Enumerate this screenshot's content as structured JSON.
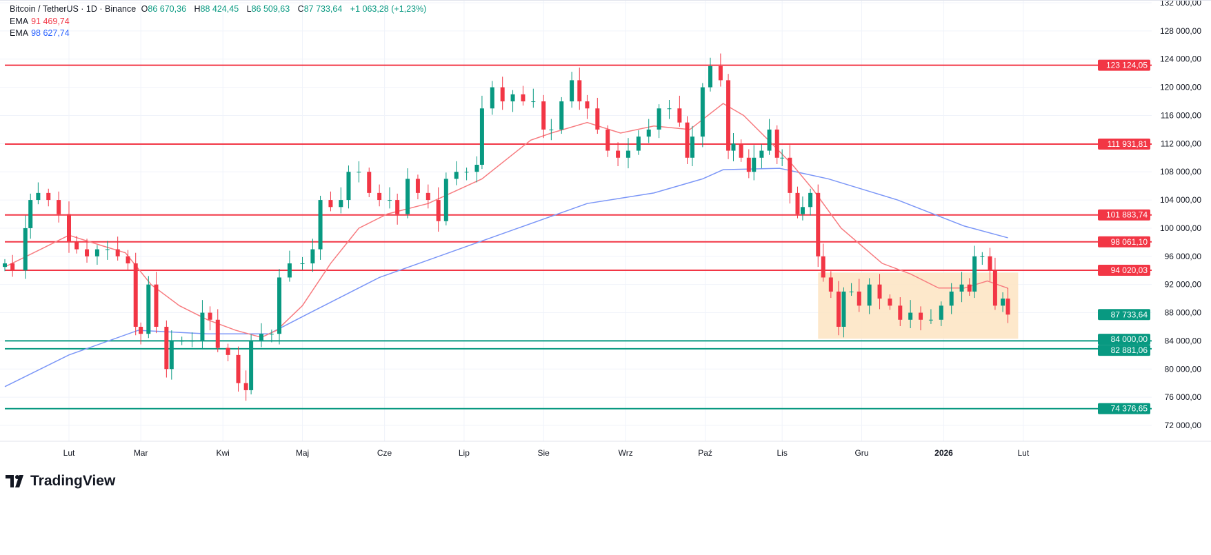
{
  "header": {
    "symbol": "Bitcoin / TetherUS · 1D · Binance",
    "o_label": "O",
    "o": "86 670,36",
    "h_label": "H",
    "h": "88 424,45",
    "l_label": "L",
    "l": "86 509,63",
    "c_label": "C",
    "c": "87 733,64",
    "change": "+1 063,28 (+1,23%)",
    "ema1_label": "EMA",
    "ema1": "91 469,74",
    "ema2_label": "EMA",
    "ema2": "98 627,74"
  },
  "brand": "TradingView",
  "colors": {
    "up": "#089981",
    "down": "#f23645",
    "ema_fast": "#f77c80",
    "ema_slow": "#7b96f7",
    "resistance": "#f23645",
    "support": "#089981",
    "zone": "#fde4c2"
  },
  "chart_data": {
    "type": "candlestick",
    "title": "Bitcoin / TetherUS · 1D · Binance",
    "ylim": [
      72000,
      132000
    ],
    "y_ticks": [
      "132 000,00",
      "128 000,00",
      "124 000,00",
      "120 000,00",
      "116 000,00",
      "112 000,00",
      "108 000,00",
      "104 000,00",
      "100 000,00",
      "96 000,00",
      "92 000,00",
      "88 000,00",
      "84 000,00",
      "80 000,00",
      "76 000,00",
      "72 000,00"
    ],
    "y_tick_values": [
      132000,
      128000,
      124000,
      120000,
      116000,
      112000,
      108000,
      104000,
      100000,
      96000,
      92000,
      88000,
      84000,
      80000,
      76000,
      72000
    ],
    "x_unit": "days since first candle",
    "x_range": [
      0,
      391
    ],
    "x_ticks": [
      {
        "label": "Lut",
        "day": 25
      },
      {
        "label": "Mar",
        "day": 53
      },
      {
        "label": "Kwi",
        "day": 85
      },
      {
        "label": "Maj",
        "day": 116
      },
      {
        "label": "Cze",
        "day": 148
      },
      {
        "label": "Lip",
        "day": 179
      },
      {
        "label": "Sie",
        "day": 210
      },
      {
        "label": "Wrz",
        "day": 242
      },
      {
        "label": "Paź",
        "day": 273
      },
      {
        "label": "Lis",
        "day": 303
      },
      {
        "label": "Gru",
        "day": 334
      },
      {
        "label": "2026",
        "day": 366
      },
      {
        "label": "Lut",
        "day": 397
      }
    ],
    "closes": [
      [
        0,
        95
      ],
      [
        3,
        94
      ],
      [
        8,
        100
      ],
      [
        10,
        104
      ],
      [
        13,
        105
      ],
      [
        17,
        104
      ],
      [
        21,
        102
      ],
      [
        25,
        98
      ],
      [
        28,
        97
      ],
      [
        32,
        96
      ],
      [
        36,
        97
      ],
      [
        40,
        97
      ],
      [
        44,
        96
      ],
      [
        48,
        95
      ],
      [
        51,
        86
      ],
      [
        53,
        85
      ],
      [
        56,
        92
      ],
      [
        59,
        86
      ],
      [
        63,
        80
      ],
      [
        65,
        84
      ],
      [
        69,
        84
      ],
      [
        73,
        84
      ],
      [
        77,
        88
      ],
      [
        80,
        87
      ],
      [
        83,
        83
      ],
      [
        87,
        82
      ],
      [
        91,
        78
      ],
      [
        94,
        77
      ],
      [
        96,
        84
      ],
      [
        100,
        85
      ],
      [
        104,
        85
      ],
      [
        107,
        93
      ],
      [
        111,
        95
      ],
      [
        116,
        95
      ],
      [
        120,
        97
      ],
      [
        123,
        104
      ],
      [
        127,
        103
      ],
      [
        131,
        104
      ],
      [
        134,
        108
      ],
      [
        138,
        108
      ],
      [
        142,
        105
      ],
      [
        146,
        104
      ],
      [
        150,
        104
      ],
      [
        153,
        102
      ],
      [
        157,
        107
      ],
      [
        161,
        105
      ],
      [
        165,
        104
      ],
      [
        169,
        101
      ],
      [
        172,
        107
      ],
      [
        176,
        108
      ],
      [
        180,
        108
      ],
      [
        184,
        109
      ],
      [
        186,
        117
      ],
      [
        190,
        120
      ],
      [
        194,
        118
      ],
      [
        198,
        119
      ],
      [
        202,
        118
      ],
      [
        206,
        118
      ],
      [
        210,
        114
      ],
      [
        213,
        114
      ],
      [
        217,
        118
      ],
      [
        221,
        121
      ],
      [
        224,
        118
      ],
      [
        227,
        117
      ],
      [
        231,
        114
      ],
      [
        235,
        111
      ],
      [
        239,
        110
      ],
      [
        243,
        111
      ],
      [
        247,
        113
      ],
      [
        251,
        114
      ],
      [
        255,
        117
      ],
      [
        259,
        117
      ],
      [
        263,
        115
      ],
      [
        266,
        110
      ],
      [
        268,
        113
      ],
      [
        272,
        120
      ],
      [
        275,
        123
      ],
      [
        279,
        121
      ],
      [
        282,
        111
      ],
      [
        284,
        112
      ],
      [
        287,
        110
      ],
      [
        290,
        108
      ],
      [
        292,
        110
      ],
      [
        295,
        111
      ],
      [
        298,
        114
      ],
      [
        301,
        110
      ],
      [
        303,
        110
      ],
      [
        306,
        105
      ],
      [
        309,
        102
      ],
      [
        311,
        103
      ],
      [
        314,
        105
      ],
      [
        317,
        96
      ],
      [
        319,
        93
      ],
      [
        322,
        91
      ],
      [
        325,
        86
      ],
      [
        327,
        91
      ],
      [
        330,
        91
      ],
      [
        333,
        89
      ],
      [
        337,
        92
      ],
      [
        341,
        90
      ],
      [
        345,
        89
      ],
      [
        349,
        87
      ],
      [
        353,
        88
      ],
      [
        357,
        87
      ],
      [
        361,
        87
      ],
      [
        365,
        89
      ],
      [
        369,
        91
      ],
      [
        373,
        92
      ],
      [
        376,
        91
      ],
      [
        378,
        96
      ],
      [
        381,
        96
      ],
      [
        384,
        94
      ],
      [
        386,
        89
      ],
      [
        389,
        90
      ],
      [
        391,
        87.73
      ]
    ],
    "ema_fast": {
      "label": "EMA",
      "points": [
        [
          0,
          94.5
        ],
        [
          14,
          97
        ],
        [
          25,
          99
        ],
        [
          38,
          97.5
        ],
        [
          47,
          96.5
        ],
        [
          57,
          92
        ],
        [
          68,
          89
        ],
        [
          79,
          87
        ],
        [
          90,
          85.5
        ],
        [
          100,
          84.5
        ],
        [
          106,
          85.5
        ],
        [
          116,
          89
        ],
        [
          127,
          95
        ],
        [
          138,
          100
        ],
        [
          149,
          102
        ],
        [
          165,
          103.5
        ],
        [
          186,
          107
        ],
        [
          205,
          112.5
        ],
        [
          213,
          113.5
        ],
        [
          227,
          115
        ],
        [
          240,
          113.5
        ],
        [
          253,
          114.5
        ],
        [
          267,
          114
        ],
        [
          280,
          117.7
        ],
        [
          288,
          116
        ],
        [
          299,
          112
        ],
        [
          307,
          109
        ],
        [
          315,
          105.5
        ],
        [
          326,
          100
        ],
        [
          342,
          95
        ],
        [
          353,
          93.5
        ],
        [
          364,
          91.5
        ],
        [
          374,
          91.5
        ],
        [
          383,
          92.5
        ],
        [
          391,
          91.47
        ]
      ]
    },
    "ema_slow": {
      "label": "EMA",
      "points": [
        [
          0,
          77.5
        ],
        [
          25,
          82
        ],
        [
          52,
          85.5
        ],
        [
          79,
          85
        ],
        [
          103,
          85
        ],
        [
          119,
          88
        ],
        [
          146,
          93
        ],
        [
          173,
          96.5
        ],
        [
          200,
          100
        ],
        [
          227,
          103.5
        ],
        [
          253,
          105
        ],
        [
          272,
          107
        ],
        [
          280,
          108.3
        ],
        [
          302,
          108.5
        ],
        [
          321,
          107
        ],
        [
          348,
          104
        ],
        [
          374,
          100.3
        ],
        [
          391,
          98.63
        ]
      ]
    },
    "levels": [
      {
        "value": 123124.05,
        "label": "123 124,05",
        "kind": "resistance"
      },
      {
        "value": 111931.81,
        "label": "111 931,81",
        "kind": "resistance"
      },
      {
        "value": 101883.74,
        "label": "101 883,74",
        "kind": "resistance"
      },
      {
        "value": 98061.1,
        "label": "98 061,10",
        "kind": "resistance"
      },
      {
        "value": 94020.03,
        "label": "94 020,03",
        "kind": "resistance"
      },
      {
        "value": 84000.0,
        "label": "84 000,00",
        "kind": "support"
      },
      {
        "value": 82881.06,
        "label": "82 881,06",
        "kind": "support"
      },
      {
        "value": 74376.65,
        "label": "74 376,65",
        "kind": "support"
      }
    ],
    "last_price": {
      "value": 87733.64,
      "label": "87 733,64"
    },
    "zone": {
      "from_day": 317,
      "to_day": 395,
      "low": 84300,
      "high": 93700
    }
  }
}
